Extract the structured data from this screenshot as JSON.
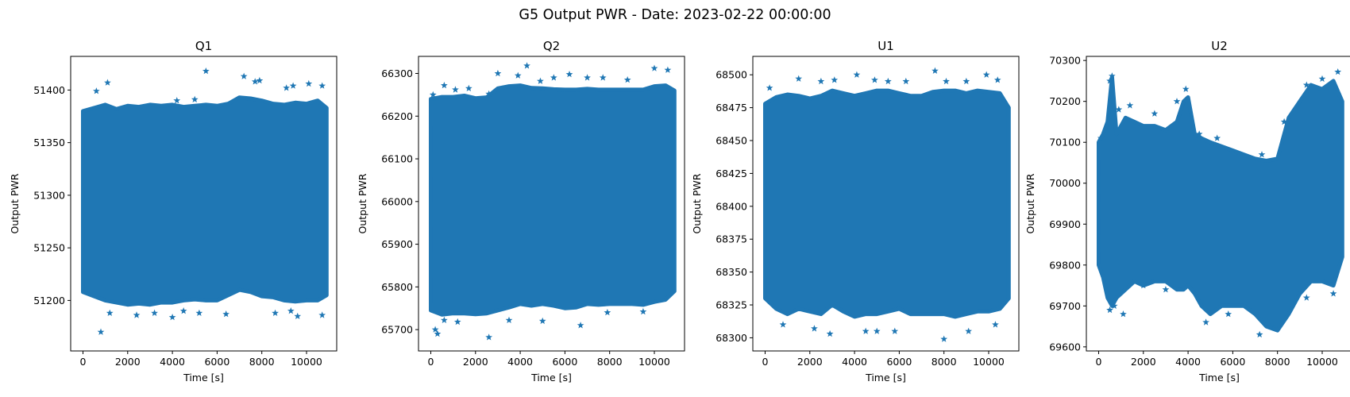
{
  "figure": {
    "suptitle": "G5 Output PWR - Date: 2023-02-22 00:00:00",
    "series_color": "#1f77b4"
  },
  "chart_data": [
    {
      "type": "scatter",
      "title": "Q1",
      "xlabel": "Time [s]",
      "ylabel": "Output PWR",
      "marker": "star",
      "xlim": [
        -550,
        11350
      ],
      "ylim": [
        51152,
        51432
      ],
      "x_ticks": [
        0,
        2000,
        4000,
        6000,
        8000,
        10000
      ],
      "y_ticks": [
        51200,
        51250,
        51300,
        51350,
        51400
      ],
      "band": {
        "x": [
          0,
          500,
          1000,
          1500,
          2000,
          2500,
          3000,
          3500,
          4000,
          4500,
          5000,
          5500,
          6000,
          6500,
          7000,
          7500,
          8000,
          8500,
          9000,
          9500,
          10000,
          10500,
          10900
        ],
        "upper": [
          51380,
          51383,
          51386,
          51382,
          51385,
          51384,
          51386,
          51385,
          51386,
          51384,
          51385,
          51386,
          51385,
          51387,
          51393,
          51392,
          51390,
          51387,
          51386,
          51388,
          51387,
          51390,
          51383
        ],
        "lower": [
          51208,
          51204,
          51200,
          51198,
          51196,
          51197,
          51196,
          51198,
          51198,
          51200,
          51201,
          51200,
          51200,
          51205,
          51210,
          51208,
          51204,
          51203,
          51200,
          51199,
          51200,
          51200,
          51205
        ]
      },
      "outliers": {
        "x": [
          600,
          800,
          1100,
          4200,
          5000,
          5500,
          7200,
          7700,
          7900,
          9100,
          9400,
          10100,
          10700,
          1200,
          2400,
          3200,
          4000,
          4500,
          5200,
          6400,
          8600,
          9300,
          9600,
          10700
        ],
        "y": [
          51399,
          51170,
          51407,
          51390,
          51391,
          51418,
          51413,
          51408,
          51409,
          51402,
          51404,
          51406,
          51404,
          51188,
          51186,
          51188,
          51184,
          51190,
          51188,
          51187,
          51188,
          51190,
          51185,
          51186
        ]
      }
    },
    {
      "type": "scatter",
      "title": "Q2",
      "xlabel": "Time [s]",
      "ylabel": "Output PWR",
      "marker": "star",
      "xlim": [
        -550,
        11350
      ],
      "ylim": [
        65650,
        66340
      ],
      "x_ticks": [
        0,
        2000,
        4000,
        6000,
        8000,
        10000
      ],
      "y_ticks": [
        65700,
        65800,
        65900,
        66000,
        66100,
        66200,
        66300
      ],
      "band": {
        "x": [
          0,
          500,
          1000,
          1500,
          2000,
          2500,
          3000,
          3500,
          4000,
          4500,
          5000,
          5500,
          6000,
          6500,
          7000,
          7500,
          8000,
          8500,
          9000,
          9500,
          10000,
          10500,
          10900
        ],
        "upper": [
          66240,
          66245,
          66245,
          66248,
          66242,
          66244,
          66265,
          66270,
          66272,
          66266,
          66265,
          66263,
          66262,
          66262,
          66264,
          66262,
          66262,
          66262,
          66262,
          66262,
          66270,
          66272,
          66260
        ],
        "lower": [
          65745,
          65735,
          65738,
          65738,
          65736,
          65738,
          65745,
          65752,
          65760,
          65756,
          65760,
          65756,
          65750,
          65752,
          65760,
          65758,
          65760,
          65760,
          65760,
          65758,
          65765,
          65770,
          65790
        ]
      },
      "outliers": {
        "x": [
          100,
          600,
          1100,
          1700,
          2600,
          3000,
          3900,
          4300,
          4900,
          5500,
          6200,
          7000,
          7700,
          8800,
          10000,
          10600,
          200,
          300,
          600,
          1200,
          2600,
          3500,
          5000,
          6700,
          7900,
          9500
        ],
        "y": [
          66250,
          66272,
          66262,
          66265,
          66252,
          66300,
          66295,
          66318,
          66282,
          66290,
          66298,
          66290,
          66290,
          66285,
          66312,
          66308,
          65700,
          65690,
          65722,
          65718,
          65682,
          65722,
          65720,
          65710,
          65740,
          65742
        ]
      }
    },
    {
      "type": "scatter",
      "title": "U1",
      "xlabel": "Time [s]",
      "ylabel": "Output PWR",
      "marker": "star",
      "xlim": [
        -550,
        11350
      ],
      "ylim": [
        68290,
        68514
      ],
      "x_ticks": [
        0,
        2000,
        4000,
        6000,
        8000,
        10000
      ],
      "y_ticks": [
        68300,
        68325,
        68350,
        68375,
        68400,
        68425,
        68450,
        68475,
        68500
      ],
      "band": {
        "x": [
          0,
          500,
          1000,
          1500,
          2000,
          2500,
          3000,
          3500,
          4000,
          4500,
          5000,
          5500,
          6000,
          6500,
          7000,
          7500,
          8000,
          8500,
          9000,
          9500,
          10000,
          10500,
          10900
        ],
        "upper": [
          68478,
          68483,
          68485,
          68484,
          68482,
          68484,
          68488,
          68486,
          68484,
          68486,
          68488,
          68488,
          68486,
          68484,
          68484,
          68487,
          68488,
          68488,
          68486,
          68488,
          68487,
          68486,
          68475
        ],
        "lower": [
          68330,
          68322,
          68318,
          68322,
          68320,
          68318,
          68325,
          68320,
          68316,
          68318,
          68318,
          68320,
          68322,
          68318,
          68318,
          68318,
          68318,
          68316,
          68318,
          68320,
          68320,
          68322,
          68330
        ]
      },
      "outliers": {
        "x": [
          200,
          1500,
          2500,
          3100,
          4100,
          4900,
          5500,
          6300,
          7600,
          8100,
          9000,
          9900,
          10400,
          800,
          2200,
          2900,
          4500,
          5000,
          5800,
          8000,
          9100,
          10300
        ],
        "y": [
          68490,
          68497,
          68495,
          68496,
          68500,
          68496,
          68495,
          68495,
          68503,
          68495,
          68495,
          68500,
          68496,
          68310,
          68307,
          68303,
          68305,
          68305,
          68305,
          68299,
          68305,
          68310
        ]
      }
    },
    {
      "type": "scatter",
      "title": "U2",
      "xlabel": "Time [s]",
      "ylabel": "Output PWR",
      "marker": "star",
      "xlim": [
        -550,
        11350
      ],
      "ylim": [
        69590,
        70310
      ],
      "x_ticks": [
        0,
        2000,
        4000,
        6000,
        8000,
        10000
      ],
      "y_ticks": [
        69600,
        69700,
        69800,
        69900,
        70000,
        70100,
        70200,
        70300
      ],
      "band": {
        "x": [
          0,
          200,
          400,
          600,
          800,
          1200,
          1600,
          2000,
          2500,
          3000,
          3500,
          3800,
          4000,
          4300,
          4600,
          5000,
          5500,
          6000,
          6500,
          7000,
          7500,
          8000,
          8500,
          9000,
          9500,
          10000,
          10500,
          10900
        ],
        "upper": [
          70100,
          70120,
          70150,
          70260,
          70120,
          70160,
          70150,
          70140,
          70140,
          70130,
          70150,
          70200,
          70210,
          70120,
          70110,
          70100,
          70090,
          70080,
          70070,
          70060,
          70055,
          70060,
          70160,
          70200,
          70240,
          70230,
          70250,
          70200
        ],
        "lower": [
          69800,
          69770,
          69720,
          69700,
          69720,
          69740,
          69760,
          69750,
          69760,
          69760,
          69740,
          69740,
          69750,
          69730,
          69700,
          69680,
          69700,
          69700,
          69700,
          69680,
          69650,
          69640,
          69680,
          69730,
          69760,
          69760,
          69750,
          69820
        ]
      },
      "outliers": {
        "x": [
          100,
          500,
          600,
          900,
          1400,
          2500,
          3500,
          3900,
          4500,
          5300,
          7300,
          8300,
          9300,
          10000,
          10700,
          500,
          700,
          1100,
          2000,
          3000,
          4800,
          5800,
          7200,
          7700,
          9300,
          10500
        ],
        "y": [
          70110,
          70250,
          70262,
          70180,
          70190,
          70170,
          70200,
          70230,
          70120,
          70110,
          70070,
          70150,
          70240,
          70255,
          70272,
          69690,
          69700,
          69680,
          69750,
          69740,
          69660,
          69680,
          69630,
          69650,
          69720,
          69730
        ]
      }
    }
  ]
}
